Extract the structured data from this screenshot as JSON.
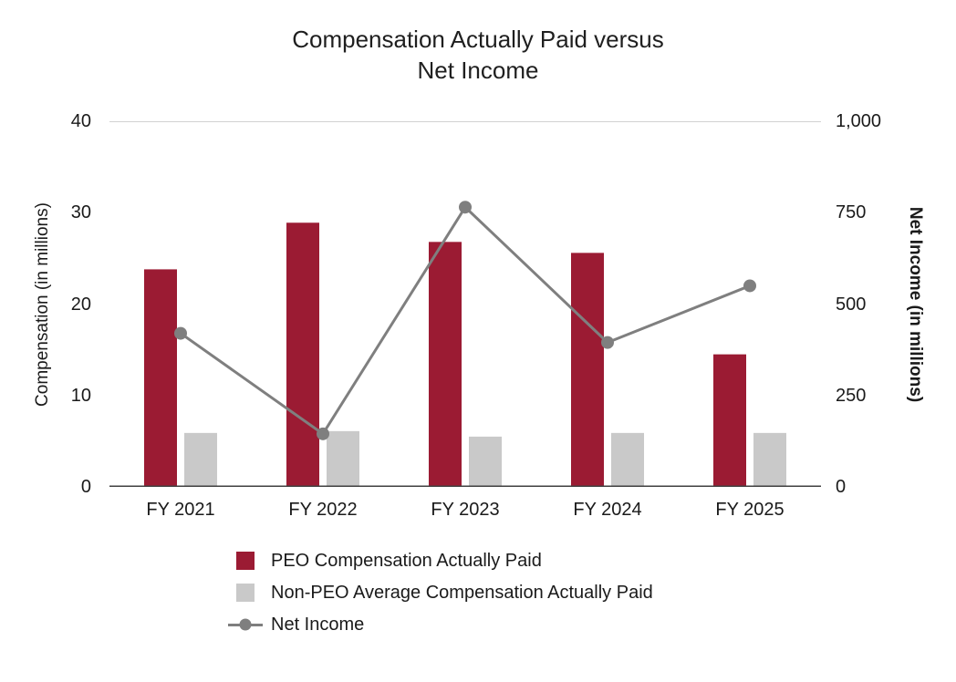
{
  "title": {
    "line1": "Compensation Actually Paid versus",
    "line2": "Net Income"
  },
  "axes": {
    "left_label": "Compensation (in millions)",
    "right_label": "Net Income (in millions)",
    "left_ticks": [
      "40",
      "30",
      "20",
      "10",
      "0"
    ],
    "right_ticks": [
      "1,000",
      "750",
      "500",
      "250",
      "0"
    ]
  },
  "chart_data": {
    "type": "bar",
    "subtype": "grouped-bars-with-secondary-axis-line",
    "title": "Compensation Actually Paid versus Net Income",
    "categories": [
      "FY 2021",
      "FY 2022",
      "FY 2023",
      "FY 2024",
      "FY 2025"
    ],
    "series": [
      {
        "name": "PEO Compensation Actually Paid",
        "type": "bar",
        "axis": "left",
        "color": "#9B1B33",
        "values": [
          23.8,
          28.9,
          26.8,
          25.6,
          14.5
        ]
      },
      {
        "name": "Non-PEO Average Compensation Actually Paid",
        "type": "bar",
        "axis": "left",
        "color": "#C9C9C9",
        "values": [
          5.9,
          6.1,
          5.5,
          5.9,
          5.9
        ]
      },
      {
        "name": "Net Income",
        "type": "line",
        "axis": "right",
        "color": "#7F7F7F",
        "values": [
          420,
          145,
          765,
          395,
          550
        ]
      }
    ],
    "ylabel_left": "Compensation (in millions)",
    "ylabel_right": "Net Income (in millions)",
    "ylim_left": [
      0,
      40
    ],
    "ylim_right": [
      0,
      1000
    ],
    "grid": false,
    "legend_position": "bottom-left",
    "colors": {
      "peo_bar": "#9B1B33",
      "non_peo_bar": "#C9C9C9",
      "net_income_line": "#7F7F7F",
      "top_gridline": "#D2D2D2",
      "axis_line": "#404040"
    }
  }
}
